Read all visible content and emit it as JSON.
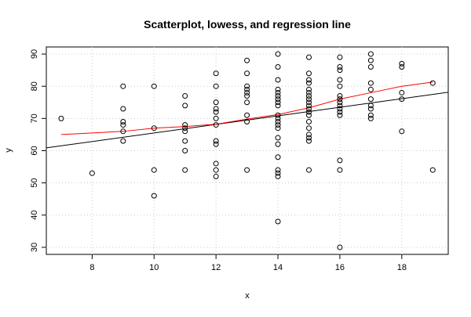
{
  "chart_data": {
    "type": "scatter",
    "title": "Scatterplot, lowess, and regression line",
    "x_label": "x",
    "y_label": "y",
    "xlim": [
      6.52,
      19.5
    ],
    "ylim": [
      27.8,
      92.2
    ],
    "xticks": [
      8,
      10,
      12,
      14,
      16,
      18
    ],
    "yticks": [
      30,
      40,
      50,
      60,
      70,
      80,
      90
    ],
    "grid": true,
    "points": {
      "color": "#000000",
      "x": [
        7,
        8,
        9,
        9,
        9,
        9,
        9,
        9,
        10,
        10,
        10,
        10,
        11,
        11,
        11,
        11,
        11,
        11,
        11,
        11,
        12,
        12,
        12,
        12,
        12,
        12,
        12,
        12,
        12,
        12,
        12,
        12,
        13,
        13,
        13,
        13,
        13,
        13,
        13,
        13,
        13,
        13,
        14,
        14,
        14,
        14,
        14,
        14,
        14,
        14,
        14,
        14,
        14,
        14,
        14,
        14,
        14,
        14,
        14,
        14,
        14,
        14,
        14,
        15,
        15,
        15,
        15,
        15,
        15,
        15,
        15,
        15,
        15,
        15,
        15,
        15,
        15,
        15,
        15,
        15,
        15,
        15,
        16,
        16,
        16,
        16,
        16,
        16,
        16,
        16,
        16,
        16,
        16,
        16,
        16,
        16,
        16,
        17,
        17,
        17,
        17,
        17,
        17,
        17,
        17,
        17,
        17,
        18,
        18,
        18,
        18,
        18,
        19,
        19
      ],
      "values": [
        70,
        53,
        80,
        73,
        69,
        68,
        66,
        63,
        80,
        67,
        54,
        46,
        77,
        74,
        68,
        67,
        66,
        63,
        60,
        54,
        84,
        80,
        75,
        73,
        72,
        70,
        68,
        63,
        62,
        56,
        54,
        52,
        88,
        84,
        80,
        79,
        78,
        77,
        75,
        71,
        69,
        54,
        90,
        86,
        82,
        79,
        78,
        77,
        76,
        75,
        74,
        71,
        70,
        69,
        68,
        67,
        64,
        62,
        58,
        54,
        53,
        52,
        38,
        89,
        84,
        82,
        81,
        79,
        78,
        77,
        76,
        75,
        74,
        73,
        72,
        71,
        69,
        67,
        65,
        64,
        63,
        54,
        89,
        86,
        85,
        82,
        80,
        77,
        76,
        75,
        74,
        73,
        72,
        71,
        57,
        54,
        30,
        90,
        88,
        86,
        81,
        79,
        76,
        74,
        73,
        71,
        70,
        87,
        86,
        78,
        76,
        66,
        81,
        54
      ]
    },
    "lowess": {
      "color": "#ff0000",
      "x": [
        7,
        9,
        10,
        11,
        12,
        13,
        14,
        15,
        16,
        17,
        18,
        19
      ],
      "values": [
        65,
        66,
        67,
        67.5,
        68.2,
        69.8,
        71.2,
        73.3,
        76,
        78,
        80,
        81.3
      ]
    },
    "regression": {
      "color": "#000000",
      "intercept": 52.2,
      "slope": 1.33
    }
  }
}
